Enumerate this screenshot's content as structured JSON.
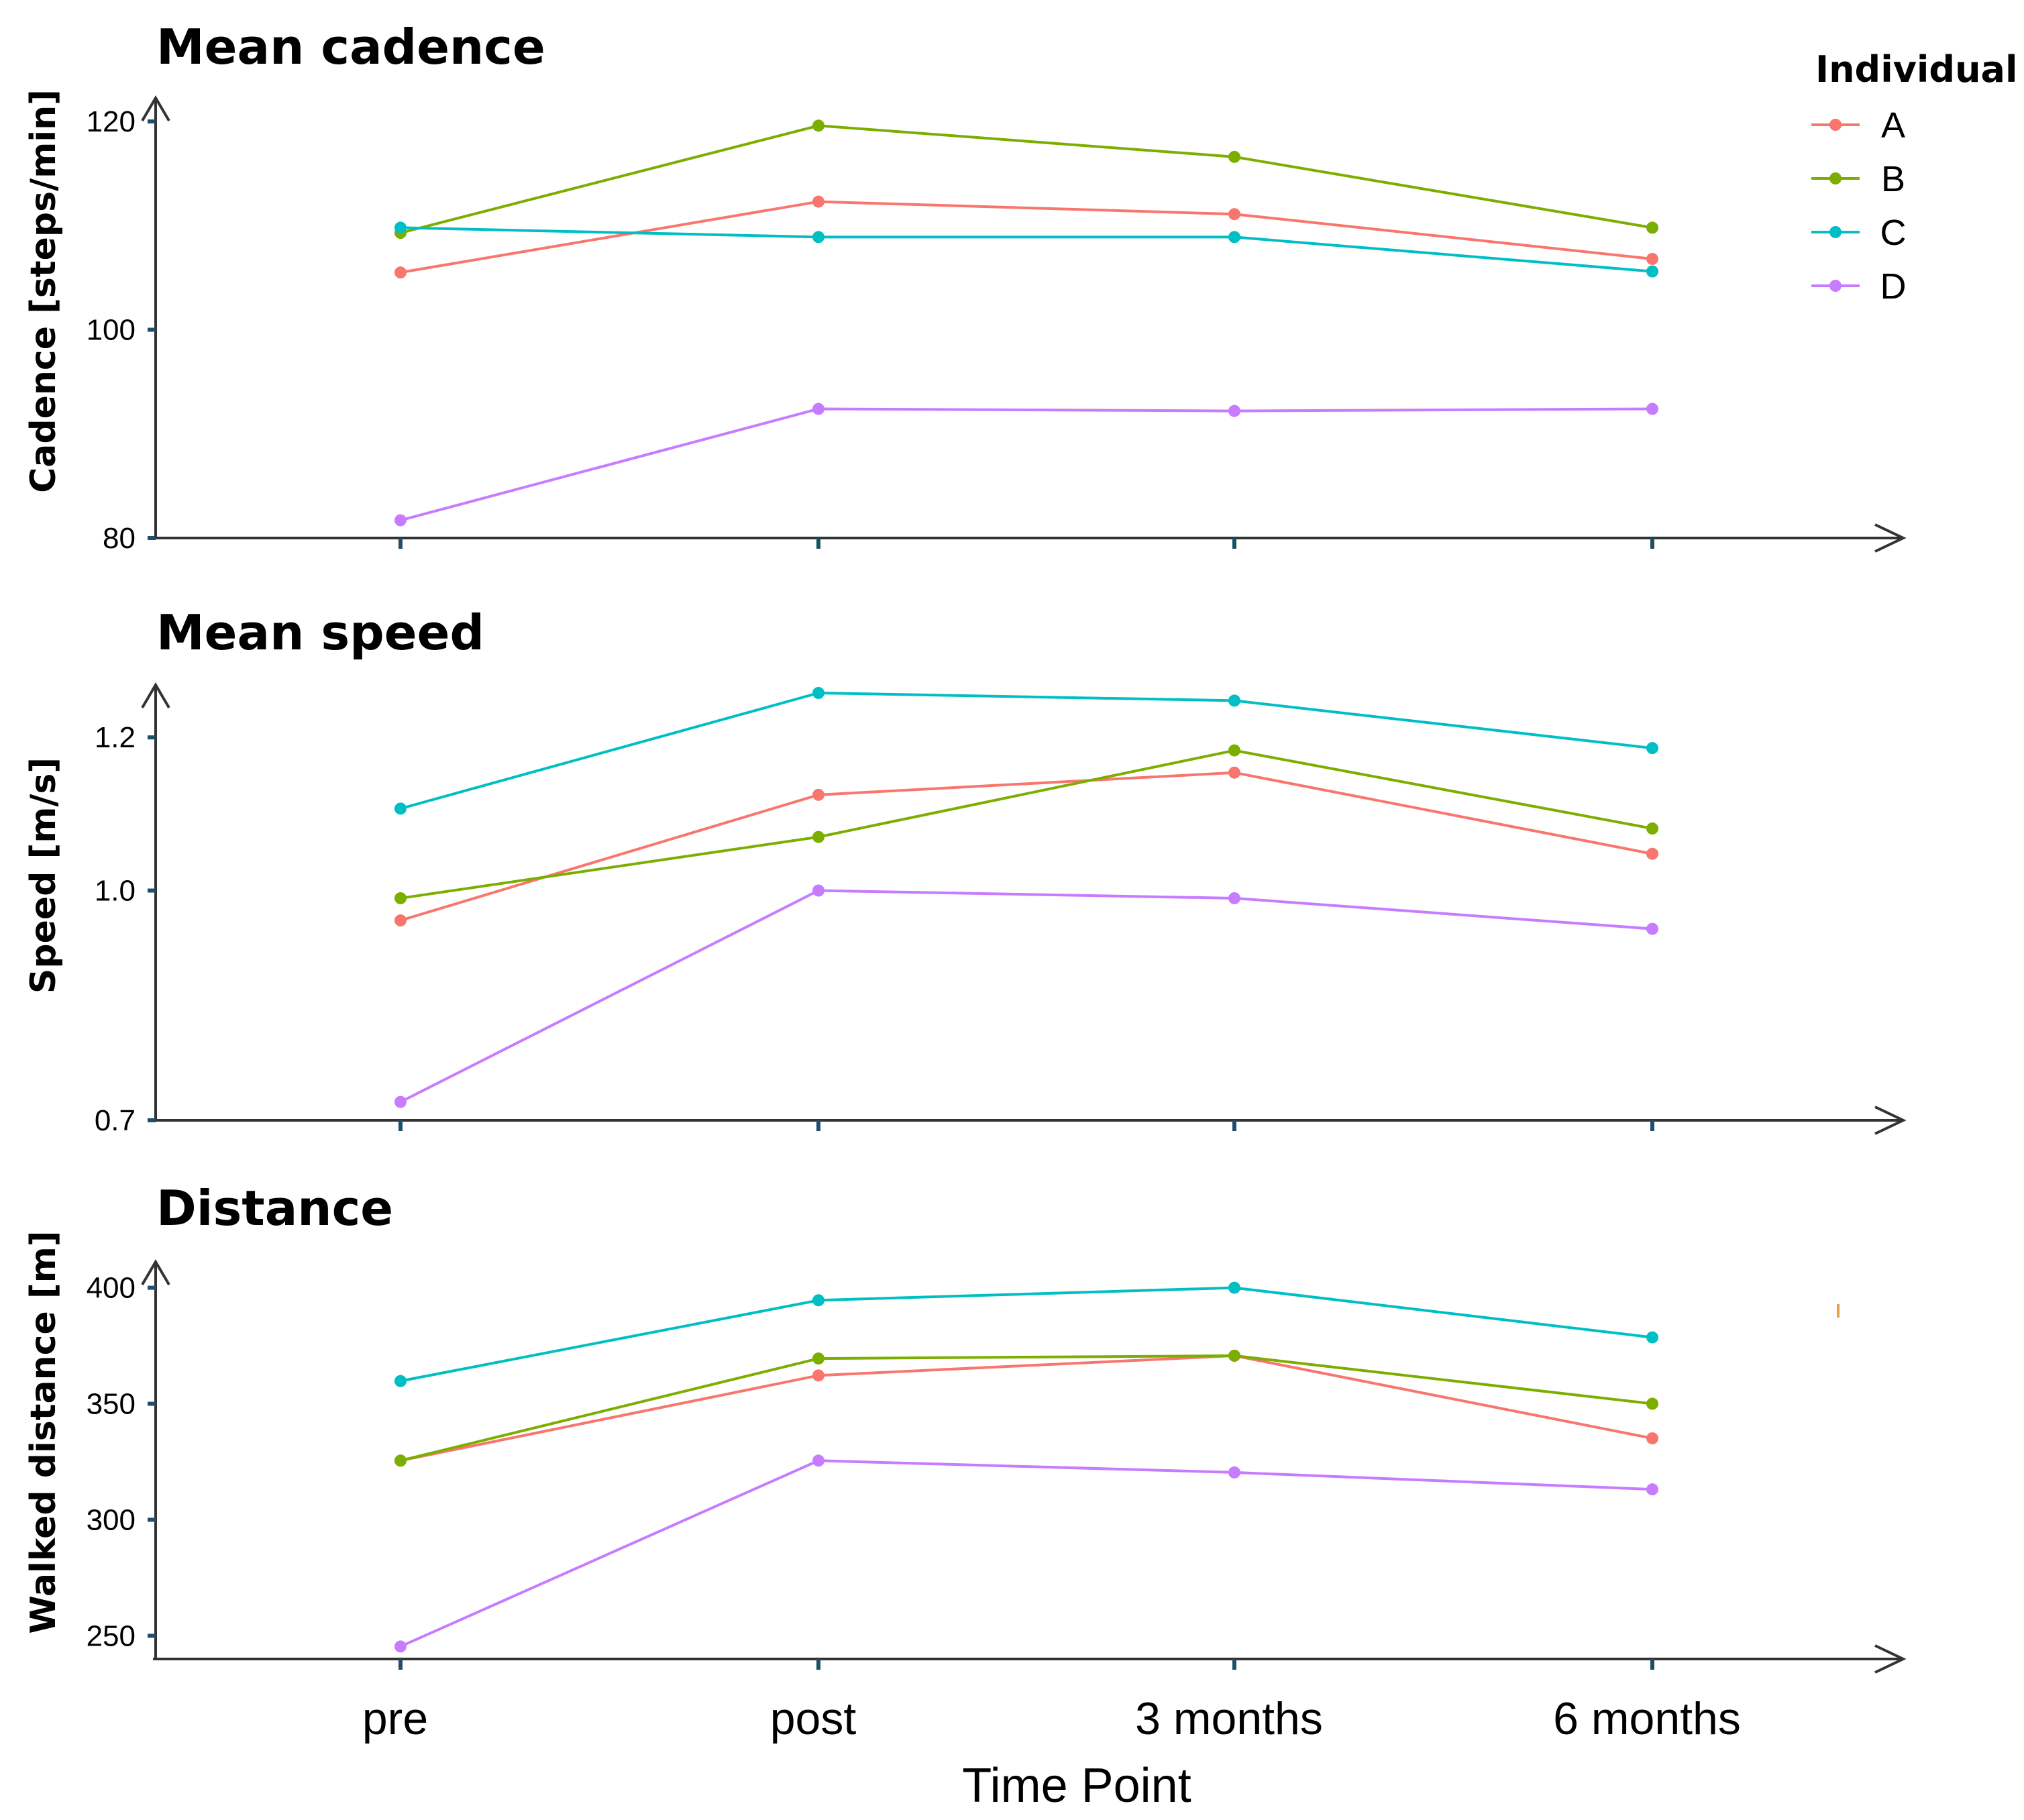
{
  "chart_data": [
    {
      "type": "line",
      "title": "Mean cadence",
      "ylabel": "Cadence [steps/min]",
      "xlabel": "",
      "categories": [
        "pre",
        "post",
        "3 months",
        "6 months"
      ],
      "ylim": [
        80,
        122
      ],
      "yticks": [
        80,
        100,
        120
      ],
      "ytick_labels": [
        "80",
        "100",
        "120"
      ],
      "series": [
        {
          "name": "A",
          "values": [
            105.5,
            112.3,
            111.1,
            106.8
          ]
        },
        {
          "name": "B",
          "values": [
            109.3,
            119.6,
            116.6,
            109.8
          ]
        },
        {
          "name": "C",
          "values": [
            109.8,
            108.9,
            108.9,
            105.6
          ]
        },
        {
          "name": "D",
          "values": [
            81.7,
            92.4,
            92.2,
            92.4
          ]
        }
      ]
    },
    {
      "type": "line",
      "title": "Mean speed",
      "ylabel": "Speed  [m/s]",
      "xlabel": "",
      "categories": [
        "pre",
        "post",
        "3 months",
        "6 months"
      ],
      "ylim": [
        0.7,
        1.265
      ],
      "yticks": [
        0.7,
        1.0,
        1.2
      ],
      "ytick_labels": [
        "0.7",
        "1.0",
        "1.2"
      ],
      "series": [
        {
          "name": "A",
          "values": [
            0.961,
            1.125,
            1.154,
            1.048
          ]
        },
        {
          "name": "B",
          "values": [
            0.99,
            1.07,
            1.183,
            1.081
          ]
        },
        {
          "name": "C",
          "values": [
            1.107,
            1.258,
            1.248,
            1.186
          ]
        },
        {
          "name": "D",
          "values": [
            0.724,
            1.0,
            0.99,
            0.95
          ]
        }
      ]
    },
    {
      "type": "line",
      "title": "Distance",
      "ylabel": "Walked distance [m]",
      "xlabel": "Time Point",
      "categories": [
        "pre",
        "post",
        "3 months",
        "6 months"
      ],
      "ylim": [
        240,
        410
      ],
      "yticks": [
        250,
        300,
        350,
        400
      ],
      "ytick_labels": [
        "250",
        "300",
        "350",
        "400"
      ],
      "series": [
        {
          "name": "A",
          "values": [
            325.5,
            362.2,
            370.7,
            335.1
          ]
        },
        {
          "name": "B",
          "values": [
            325.5,
            369.5,
            370.7,
            350.0
          ]
        },
        {
          "name": "C",
          "values": [
            359.8,
            394.6,
            400.0,
            378.6
          ]
        },
        {
          "name": "D",
          "values": [
            245.4,
            325.5,
            320.4,
            313.1
          ]
        }
      ]
    }
  ],
  "legend": {
    "title": "Individual",
    "items": [
      {
        "label": "A",
        "color": "#F8766D"
      },
      {
        "label": "B",
        "color": "#7CAE00"
      },
      {
        "label": "C",
        "color": "#00BFC4"
      },
      {
        "label": "D",
        "color": "#C77CFF"
      }
    ]
  }
}
